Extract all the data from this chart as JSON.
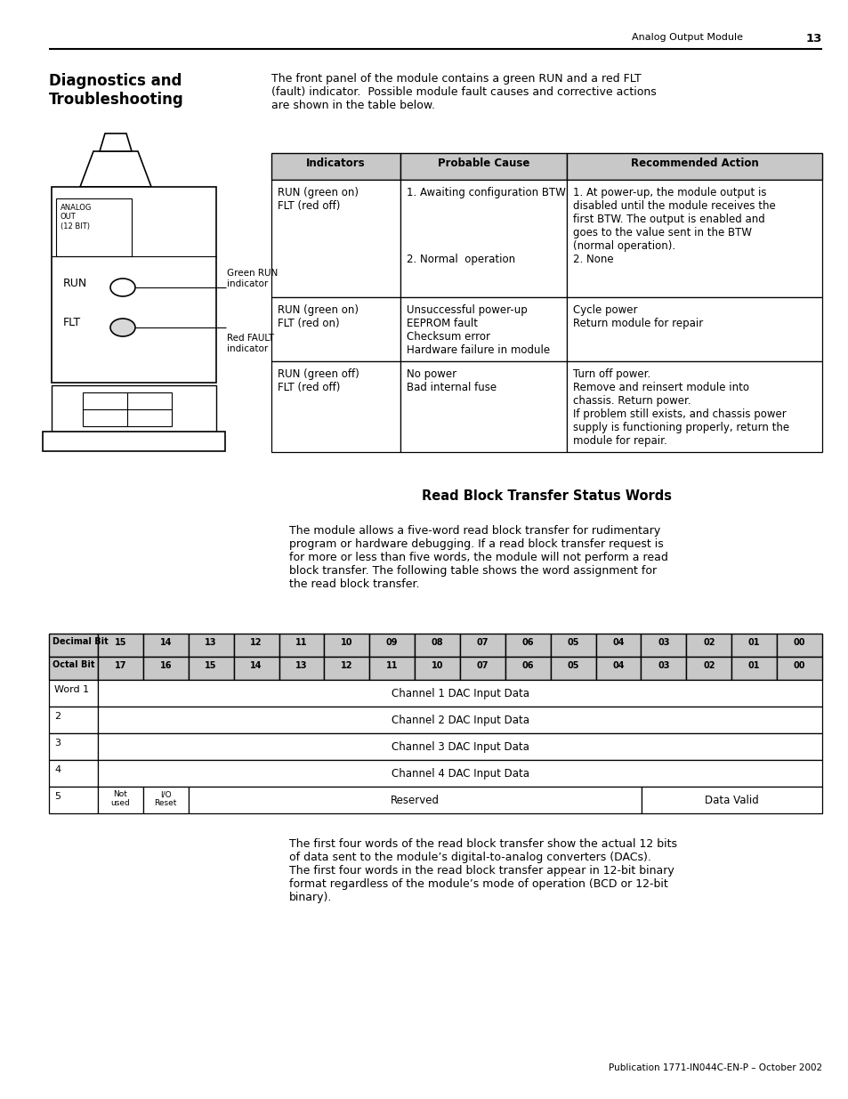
{
  "page_header_right": "Analog Output Module",
  "page_number": "13",
  "section_title": "Diagnostics and\nTroubleshooting",
  "intro_text": "The front panel of the module contains a green RUN and a red FLT\n(fault) indicator.  Possible module fault causes and corrective actions\nare shown in the table below.",
  "diag_table_headers": [
    "Indicators",
    "Probable Cause",
    "Recommended Action"
  ],
  "diag_table_rows": [
    {
      "indicators": "RUN (green on)\nFLT (red off)",
      "cause": "1. Awaiting configuration BTW\n\n\n\n\n2. Normal  operation",
      "action": "1. At power-up, the module output is\ndisabled until the module receives the\nfirst BTW. The output is enabled and\ngoes to the value sent in the BTW\n(normal operation).\n2. None"
    },
    {
      "indicators": "RUN (green on)\nFLT (red on)",
      "cause": "Unsuccessful power-up\nEEPROM fault\nChecksum error\nHardware failure in module",
      "action": "Cycle power\nReturn module for repair"
    },
    {
      "indicators": "RUN (green off)\nFLT (red off)",
      "cause": "No power\nBad internal fuse",
      "action": "Turn off power.\nRemove and reinsert module into\nchassis. Return power.\nIf problem still exists, and chassis power\nsupply is functioning properly, return the\nmodule for repair."
    }
  ],
  "rbt_section_title": "Read Block Transfer Status Words",
  "rbt_intro": "The module allows a five-word read block transfer for rudimentary\nprogram or hardware debugging. If a read block transfer request is\nfor more or less than five words, the module will not perform a read\nblock transfer. The following table shows the word assignment for\nthe read block transfer.",
  "bit_table_decimal": [
    "15",
    "14",
    "13",
    "12",
    "11",
    "10",
    "09",
    "08",
    "07",
    "06",
    "05",
    "04",
    "03",
    "02",
    "01",
    "00"
  ],
  "bit_table_octal": [
    "17",
    "16",
    "15",
    "14",
    "13",
    "12",
    "11",
    "10",
    "07",
    "06",
    "05",
    "04",
    "03",
    "02",
    "01",
    "00"
  ],
  "bit_table_words": [
    {
      "label": "Word 1",
      "content": "Channel 1 DAC Input Data",
      "type": "full"
    },
    {
      "label": "2",
      "content": "Channel 2 DAC Input Data",
      "type": "full"
    },
    {
      "label": "3",
      "content": "Channel 3 DAC Input Data",
      "type": "full"
    },
    {
      "label": "4",
      "content": "Channel 4 DAC Input Data",
      "type": "full"
    },
    {
      "label": "5",
      "col1": "Not\nused",
      "col2": "I/O\nReset",
      "col3": "Reserved",
      "col4": "Data Valid",
      "type": "split"
    }
  ],
  "footer_text": "The first four words of the read block transfer show the actual 12 bits\nof data sent to the module’s digital-to-analog converters (DACs).\nThe first four words in the read block transfer appear in 12-bit binary\nformat regardless of the module’s mode of operation (BCD or 12-bit\nbinary).",
  "publication_text": "Publication 1771-IN044C-EN-P – October 2002",
  "bg_color": "#ffffff",
  "header_bg": "#c8c8c8"
}
